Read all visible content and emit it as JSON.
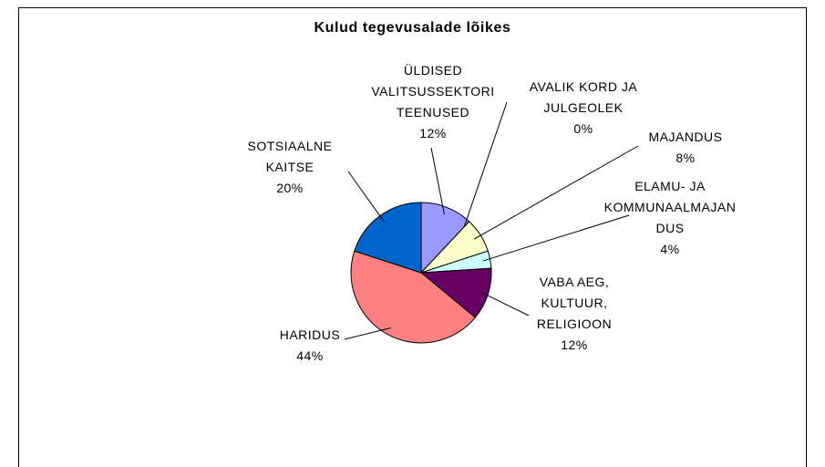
{
  "chart_data": {
    "type": "pie",
    "title": "Kulud tegevusalade lõikes",
    "categories": [
      "ÜLDISED VALITSUSSEKTORI TEENUSED",
      "AVALIK KORD JA JULGEOLEK",
      "MAJANDUS",
      "ELAMU- JA KOMMUNAALMAJANDUS",
      "VABA AEG, KULTUUR, RELIGIOON",
      "HARIDUS",
      "SOTSIAALNE KAITSE"
    ],
    "values": [
      12,
      0,
      8,
      4,
      12,
      44,
      20
    ],
    "value_labels": [
      "12%",
      "0%",
      "8%",
      "4%",
      "12%",
      "44%",
      "20%"
    ],
    "colors": [
      "#9999ff",
      "#993366",
      "#ffffcc",
      "#ccffff",
      "#660066",
      "#ff8080",
      "#0066cc"
    ]
  }
}
